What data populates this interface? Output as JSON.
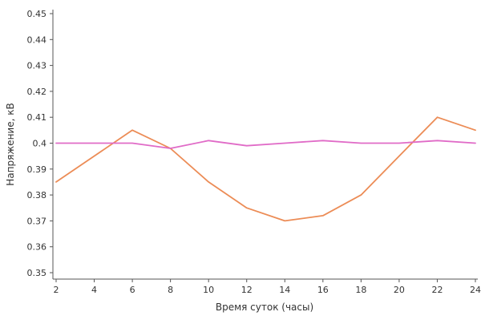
{
  "chart_data": {
    "type": "line",
    "xlabel": "Время суток (часы)",
    "ylabel": "Напряжение, кВ",
    "x": [
      2,
      4,
      6,
      8,
      10,
      12,
      14,
      16,
      18,
      20,
      22,
      24
    ],
    "xlim": [
      2,
      24
    ],
    "ylim": [
      0.35,
      0.45
    ],
    "xticks": [
      "2",
      "4",
      "6",
      "8",
      "10",
      "12",
      "14",
      "16",
      "18",
      "20",
      "22",
      "24"
    ],
    "yticks": [
      "0.35",
      "0.36",
      "0.37",
      "0.38",
      "0.39",
      "0.4",
      "0.41",
      "0.42",
      "0.43",
      "0.44",
      "0.45"
    ],
    "grid": false,
    "series": [
      {
        "color": "#ec8c56",
        "values": [
          0.385,
          0.395,
          0.405,
          0.398,
          0.385,
          0.375,
          0.37,
          0.372,
          0.38,
          0.395,
          0.41,
          0.405
        ]
      },
      {
        "color": "#e06bc7",
        "values": [
          0.4,
          0.4,
          0.4,
          0.398,
          0.401,
          0.399,
          0.4,
          0.401,
          0.4,
          0.4,
          0.401,
          0.4
        ]
      }
    ]
  }
}
